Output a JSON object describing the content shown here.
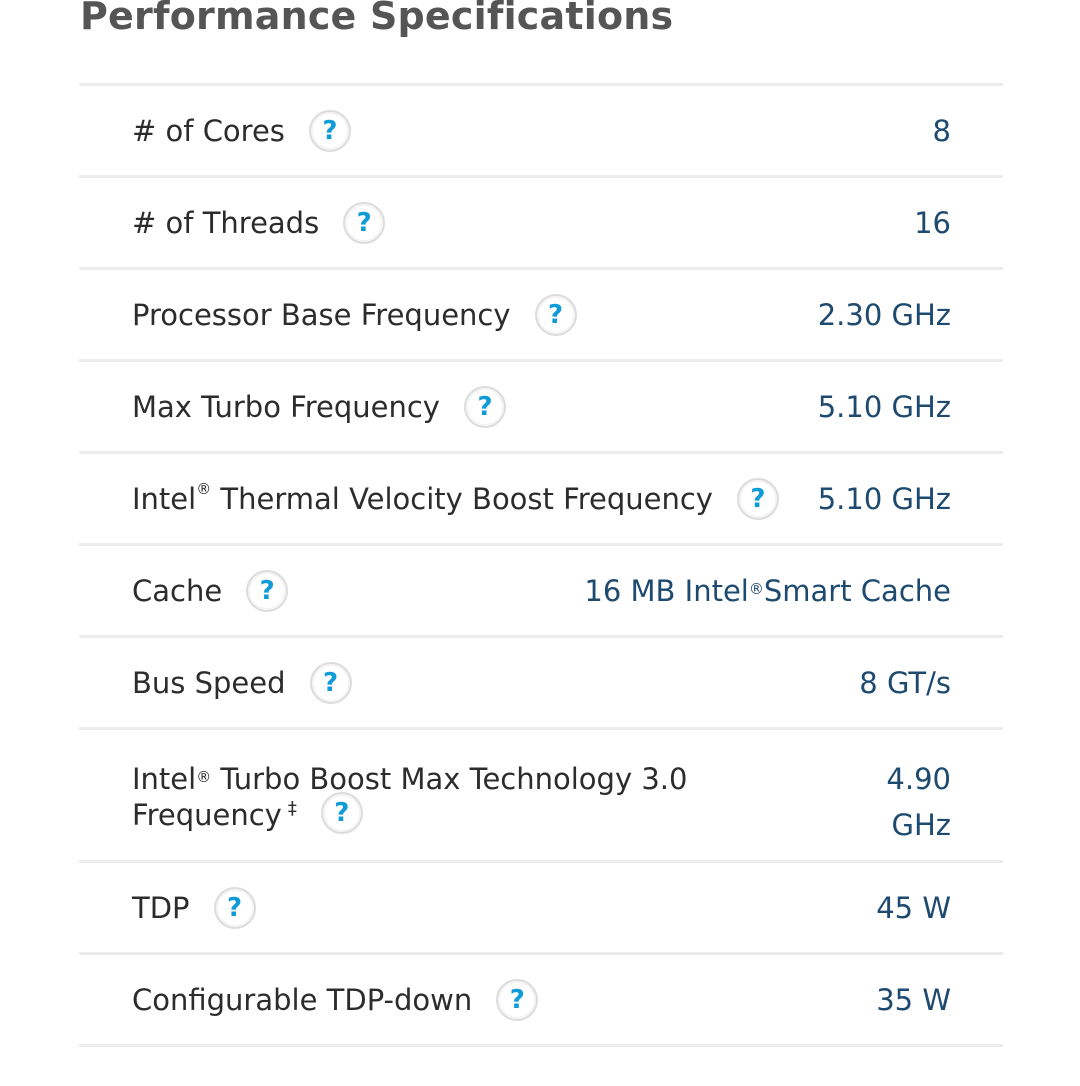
{
  "section_title": "Performance Specifications",
  "help_glyph": "?",
  "colors": {
    "title": "#555555",
    "label": "#2c2c2c",
    "value": "#1e4a70",
    "help_icon": "#0f9bd7",
    "divider": "#ececec"
  },
  "specs": [
    {
      "label": "# of Cores",
      "value": "8"
    },
    {
      "label": "# of Threads",
      "value": "16"
    },
    {
      "label": "Processor Base Frequency",
      "value": "2.30 GHz"
    },
    {
      "label": "Max Turbo Frequency",
      "value": "5.10 GHz"
    },
    {
      "label_pre": "Intel",
      "label_reg": "®",
      "label_post": " Thermal Velocity Boost Frequency",
      "value": "5.10 GHz"
    },
    {
      "label": "Cache",
      "value_pre": "16 MB Intel",
      "value_reg": "®",
      "value_post": " Smart Cache"
    },
    {
      "label": "Bus Speed",
      "value": "8 GT/s"
    },
    {
      "label_pre": "Intel",
      "label_reg": "®",
      "label_line1_post": " Turbo Boost Max Technology 3.0",
      "label_line2": "Frequency",
      "label_mark": "‡",
      "value_line1": "4.90",
      "value_line2": "GHz"
    },
    {
      "label": "TDP",
      "value": "45 W"
    },
    {
      "label": "Configurable TDP-down",
      "value": "35 W"
    }
  ]
}
